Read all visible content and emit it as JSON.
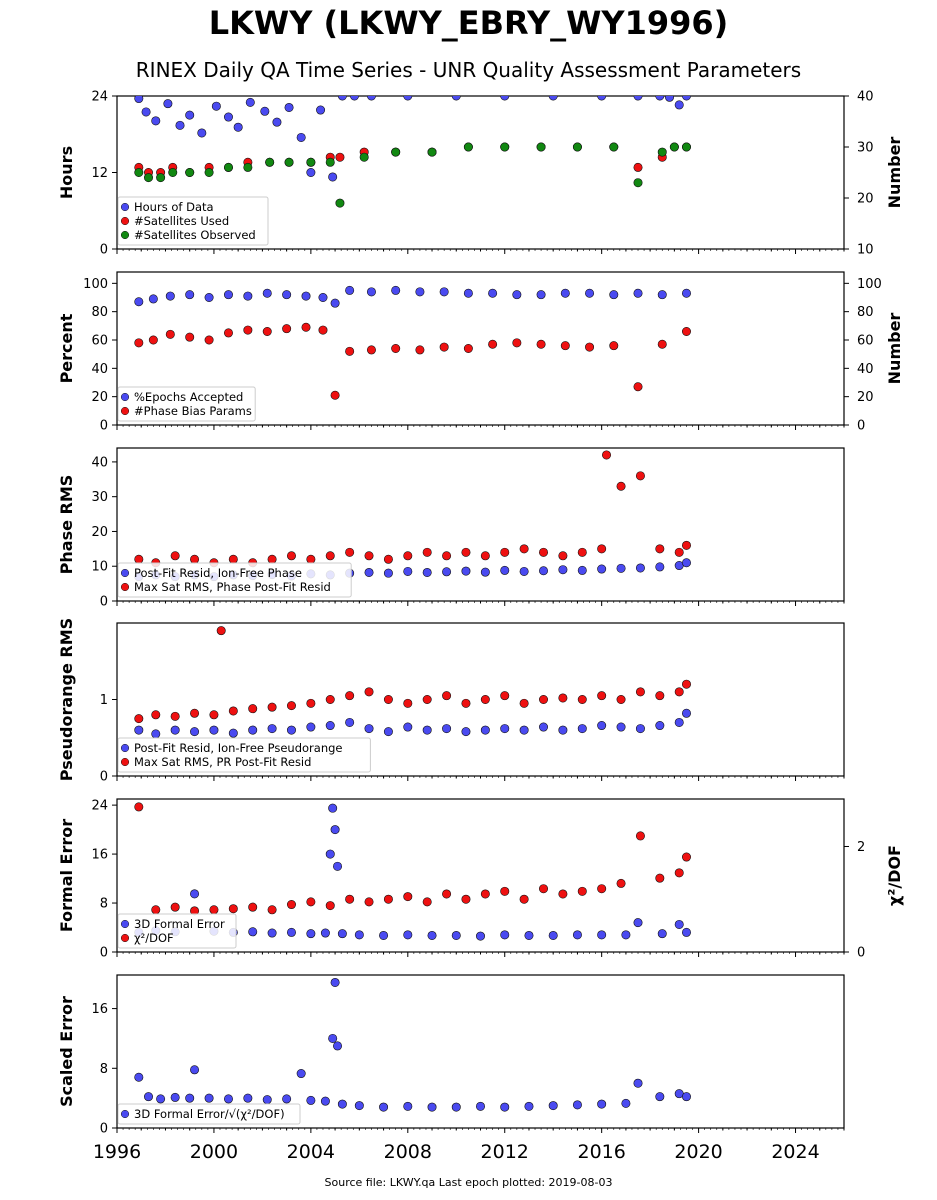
{
  "title": "LKWY (LKWY_EBRY_WY1996)",
  "subtitle": "RINEX Daily QA Time Series - UNR Quality Assessment Parameters",
  "footer": "Source file: LKWY.qa Last epoch plotted: 2019-08-03",
  "colors": {
    "blue": "#4a4af0",
    "red": "#ee1111",
    "green": "#118811",
    "edge": "#111111"
  },
  "chart_data": [
    {
      "type": "scatter",
      "ylabel": "Hours",
      "ylabel_right": "Number",
      "xlim": [
        1996,
        2026
      ],
      "ylim": [
        0,
        24
      ],
      "ylim_right": [
        10,
        40
      ],
      "yticks": [
        0,
        12,
        24
      ],
      "yticks_right": [
        10,
        20,
        30,
        40
      ],
      "legend": "lower-left",
      "series": [
        {
          "name": "Hours of Data",
          "color": "blue",
          "axis": "left",
          "x": [
            1996.9,
            1997.2,
            1997.6,
            1998.1,
            1998.6,
            1999.0,
            1999.5,
            2000.1,
            2000.6,
            2001.0,
            2001.5,
            2002.1,
            2002.6,
            2003.1,
            2003.6,
            2004.0,
            2004.4,
            2004.9,
            2005.3,
            2005.8,
            2006.5,
            2008.0,
            2010.0,
            2012.0,
            2014.0,
            2016.0,
            2017.5,
            2018.4,
            2018.8,
            2019.2,
            2019.5
          ],
          "y": [
            23.6,
            21.5,
            20.1,
            22.8,
            19.4,
            21.0,
            18.2,
            22.4,
            20.7,
            19.1,
            23.0,
            21.6,
            19.9,
            22.2,
            17.5,
            12.0,
            21.8,
            11.3,
            24,
            24,
            24,
            24,
            24,
            24,
            24,
            24,
            24,
            24,
            23.8,
            22.6,
            24
          ]
        },
        {
          "name": "#Satellites Used",
          "color": "red",
          "axis": "right",
          "x": [
            1996.9,
            1997.3,
            1997.8,
            1998.3,
            1999.0,
            1999.8,
            2000.6,
            2001.4,
            2002.3,
            2003.1,
            2004.0,
            2004.8,
            2005.2,
            2006.2,
            2007.5,
            2009.0,
            2010.5,
            2012.0,
            2013.5,
            2015.0,
            2016.5,
            2017.5,
            2018.5,
            2019.0,
            2019.5
          ],
          "y": [
            26,
            25,
            25,
            26,
            25,
            26,
            26,
            27,
            27,
            27,
            27,
            28,
            28,
            29,
            29,
            29,
            30,
            30,
            30,
            30,
            30,
            26,
            28,
            30,
            30
          ]
        },
        {
          "name": "#Satellites Observed",
          "color": "green",
          "axis": "right",
          "x": [
            1996.9,
            1997.3,
            1997.8,
            1998.3,
            1999.0,
            1999.8,
            2000.6,
            2001.4,
            2002.3,
            2003.1,
            2004.0,
            2004.8,
            2005.2,
            2006.2,
            2007.5,
            2009.0,
            2010.5,
            2012.0,
            2013.5,
            2015.0,
            2016.5,
            2017.5,
            2018.5,
            2019.0,
            2019.5
          ],
          "y": [
            25,
            24,
            24,
            25,
            25,
            25,
            26,
            26,
            27,
            27,
            27,
            27,
            19,
            28,
            29,
            29,
            30,
            30,
            30,
            30,
            30,
            23,
            29,
            30,
            30
          ]
        }
      ]
    },
    {
      "type": "scatter",
      "ylabel": "Percent",
      "ylabel_right": "Number",
      "xlim": [
        1996,
        2026
      ],
      "ylim": [
        0,
        108
      ],
      "ylim_right": [
        0,
        108
      ],
      "yticks": [
        0,
        20,
        40,
        60,
        80,
        100
      ],
      "yticks_right": [
        0,
        20,
        40,
        60,
        80,
        100
      ],
      "legend": "lower-left",
      "series": [
        {
          "name": "%Epochs Accepted",
          "color": "blue",
          "axis": "left",
          "x": [
            1996.9,
            1997.5,
            1998.2,
            1999.0,
            1999.8,
            2000.6,
            2001.4,
            2002.2,
            2003.0,
            2003.8,
            2004.5,
            2005.0,
            2005.6,
            2006.5,
            2007.5,
            2008.5,
            2009.5,
            2010.5,
            2011.5,
            2012.5,
            2013.5,
            2014.5,
            2015.5,
            2016.5,
            2017.5,
            2018.5,
            2019.5
          ],
          "y": [
            87,
            89,
            91,
            92,
            90,
            92,
            91,
            93,
            92,
            91,
            90,
            86,
            95,
            94,
            95,
            94,
            94,
            93,
            93,
            92,
            92,
            93,
            93,
            92,
            93,
            92,
            93
          ]
        },
        {
          "name": "#Phase Bias Params",
          "color": "red",
          "axis": "right",
          "x": [
            1996.9,
            1997.5,
            1998.2,
            1999.0,
            1999.8,
            2000.6,
            2001.4,
            2002.2,
            2003.0,
            2003.8,
            2004.5,
            2005.0,
            2005.6,
            2006.5,
            2007.5,
            2008.5,
            2009.5,
            2010.5,
            2011.5,
            2012.5,
            2013.5,
            2014.5,
            2015.5,
            2016.5,
            2017.5,
            2018.5,
            2019.5
          ],
          "y": [
            58,
            60,
            64,
            62,
            60,
            65,
            67,
            66,
            68,
            69,
            67,
            21,
            52,
            53,
            54,
            53,
            55,
            54,
            57,
            58,
            57,
            56,
            55,
            56,
            27,
            57,
            66
          ]
        }
      ]
    },
    {
      "type": "scatter",
      "ylabel": "Phase RMS",
      "xlim": [
        1996,
        2026
      ],
      "ylim": [
        0,
        44
      ],
      "yticks": [
        0,
        10,
        20,
        30,
        40
      ],
      "legend": "lower-left",
      "series": [
        {
          "name": "Post-Fit Resid, Ion-Free Phase",
          "color": "blue",
          "x": [
            1996.9,
            1997.6,
            1998.4,
            1999.2,
            2000.0,
            2000.8,
            2001.6,
            2002.4,
            2003.2,
            2004.0,
            2004.8,
            2005.6,
            2006.4,
            2007.2,
            2008.0,
            2008.8,
            2009.6,
            2010.4,
            2011.2,
            2012.0,
            2012.8,
            2013.6,
            2014.4,
            2015.2,
            2016.0,
            2016.8,
            2017.6,
            2018.4,
            2019.2,
            2019.5
          ],
          "y": [
            7,
            7.5,
            7,
            7.5,
            7,
            7.5,
            7.3,
            7.6,
            7.2,
            7.8,
            7.5,
            8,
            8.2,
            8,
            8.5,
            8.2,
            8.4,
            8.6,
            8.3,
            8.8,
            8.5,
            8.7,
            9,
            8.8,
            9.2,
            9.4,
            9.5,
            9.8,
            10.2,
            11
          ]
        },
        {
          "name": "Max Sat RMS, Phase Post-Fit Resid",
          "color": "red",
          "x": [
            1996.9,
            1997.6,
            1998.4,
            1999.2,
            2000.0,
            2000.8,
            2001.6,
            2002.4,
            2003.2,
            2004.0,
            2004.8,
            2005.6,
            2006.4,
            2007.2,
            2008.0,
            2008.8,
            2009.6,
            2010.4,
            2011.2,
            2012.0,
            2012.8,
            2013.6,
            2014.4,
            2015.2,
            2016.0,
            2016.2,
            2016.8,
            2017.6,
            2018.4,
            2019.2,
            2019.5
          ],
          "y": [
            12,
            11,
            13,
            12,
            11,
            12,
            11,
            12,
            13,
            12,
            13,
            14,
            13,
            12,
            13,
            14,
            13,
            14,
            13,
            14,
            15,
            14,
            13,
            14,
            15,
            42,
            33,
            36,
            15,
            14,
            16
          ]
        }
      ]
    },
    {
      "type": "scatter",
      "ylabel": "Pseudorange RMS",
      "xlim": [
        1996,
        2026
      ],
      "ylim": [
        0,
        2.0
      ],
      "yticks": [
        0,
        1
      ],
      "legend": "lower-left",
      "series": [
        {
          "name": "Post-Fit Resid, Ion-Free Pseudorange",
          "color": "blue",
          "x": [
            1996.9,
            1997.6,
            1998.4,
            1999.2,
            2000.0,
            2000.8,
            2001.6,
            2002.4,
            2003.2,
            2004.0,
            2004.8,
            2005.6,
            2006.4,
            2007.2,
            2008.0,
            2008.8,
            2009.6,
            2010.4,
            2011.2,
            2012.0,
            2012.8,
            2013.6,
            2014.4,
            2015.2,
            2016.0,
            2016.8,
            2017.6,
            2018.4,
            2019.2,
            2019.5
          ],
          "y": [
            0.6,
            0.55,
            0.6,
            0.58,
            0.6,
            0.56,
            0.6,
            0.62,
            0.6,
            0.64,
            0.66,
            0.7,
            0.62,
            0.58,
            0.64,
            0.6,
            0.62,
            0.58,
            0.6,
            0.62,
            0.6,
            0.64,
            0.6,
            0.62,
            0.66,
            0.64,
            0.62,
            0.66,
            0.7,
            0.82
          ]
        },
        {
          "name": "Max Sat RMS, PR Post-Fit Resid",
          "color": "red",
          "x": [
            1996.9,
            1997.6,
            1998.4,
            1999.2,
            2000.0,
            2000.3,
            2000.8,
            2001.6,
            2002.4,
            2003.2,
            2004.0,
            2004.8,
            2005.6,
            2006.4,
            2007.2,
            2008.0,
            2008.8,
            2009.6,
            2010.4,
            2011.2,
            2012.0,
            2012.8,
            2013.6,
            2014.4,
            2015.2,
            2016.0,
            2016.8,
            2017.6,
            2018.4,
            2019.2,
            2019.5
          ],
          "y": [
            0.75,
            0.8,
            0.78,
            0.82,
            0.8,
            1.9,
            0.85,
            0.88,
            0.9,
            0.92,
            0.95,
            1.0,
            1.05,
            1.1,
            1.0,
            0.95,
            1.0,
            1.05,
            0.95,
            1.0,
            1.05,
            0.95,
            1.0,
            1.02,
            1.0,
            1.05,
            1.0,
            1.1,
            1.05,
            1.1,
            1.2
          ]
        }
      ]
    },
    {
      "type": "scatter",
      "ylabel": "Formal Error",
      "ylabel_right": "χ²/DOF",
      "xlim": [
        1996,
        2026
      ],
      "ylim": [
        0,
        25
      ],
      "ylim_right": [
        0,
        2.9
      ],
      "yticks": [
        0,
        8,
        16,
        24
      ],
      "yticks_right": [
        0,
        2
      ],
      "legend": "lower-left",
      "series": [
        {
          "name": "3D Formal Error",
          "color": "blue",
          "axis": "left",
          "x": [
            1996.9,
            1997.6,
            1998.4,
            1999.2,
            2000.0,
            2000.8,
            2001.6,
            2002.4,
            2003.2,
            2004.0,
            2004.6,
            2004.8,
            2004.9,
            2005.0,
            2005.1,
            2005.3,
            2006.0,
            2007.0,
            2008.0,
            2009.0,
            2010.0,
            2011.0,
            2012.0,
            2013.0,
            2014.0,
            2015.0,
            2016.0,
            2017.0,
            2017.5,
            2018.5,
            2019.2,
            2019.5
          ],
          "y": [
            3.2,
            3.5,
            3.3,
            9.5,
            3.4,
            3.2,
            3.3,
            3.1,
            3.2,
            3.0,
            3.1,
            16,
            23.5,
            20,
            14,
            3.0,
            2.8,
            2.7,
            2.8,
            2.7,
            2.7,
            2.6,
            2.8,
            2.7,
            2.7,
            2.8,
            2.8,
            2.8,
            4.8,
            3.0,
            4.5,
            3.2
          ]
        },
        {
          "name": "χ²/DOF",
          "color": "red",
          "axis": "right",
          "x": [
            1996.9,
            1997.6,
            1998.4,
            1999.2,
            2000.0,
            2000.8,
            2001.6,
            2002.4,
            2003.2,
            2004.0,
            2004.8,
            2005.6,
            2006.4,
            2007.2,
            2008.0,
            2008.8,
            2009.6,
            2010.4,
            2011.2,
            2012.0,
            2012.8,
            2013.6,
            2014.4,
            2015.2,
            2016.0,
            2016.8,
            2017.6,
            2018.4,
            2019.2,
            2019.5
          ],
          "y": [
            2.75,
            0.8,
            0.85,
            0.78,
            0.8,
            0.82,
            0.85,
            0.8,
            0.9,
            0.95,
            0.88,
            1.0,
            0.95,
            1.0,
            1.05,
            0.95,
            1.1,
            1.0,
            1.1,
            1.15,
            1.0,
            1.2,
            1.1,
            1.15,
            1.2,
            1.3,
            2.2,
            1.4,
            1.5,
            1.8
          ]
        }
      ]
    },
    {
      "type": "scatter",
      "ylabel": "Scaled Error",
      "xlabel_ticks": [
        "1996",
        "2000",
        "2004",
        "2008",
        "2012",
        "2016",
        "2020",
        "2024"
      ],
      "xlim": [
        1996,
        2026
      ],
      "ylim": [
        0,
        20.5
      ],
      "yticks": [
        0,
        8,
        16
      ],
      "legend": "lower-left",
      "series": [
        {
          "name": "3D Formal Error/√χ²/DOF",
          "color": "blue",
          "legend_html": "3D Formal Error/√(χ²/DOF)",
          "x": [
            1996.9,
            1997.3,
            1997.8,
            1998.4,
            1999.0,
            1999.2,
            1999.8,
            2000.6,
            2001.4,
            2002.2,
            2003.0,
            2003.6,
            2004.0,
            2004.6,
            2004.9,
            2005.0,
            2005.1,
            2005.3,
            2006.0,
            2007.0,
            2008.0,
            2009.0,
            2010.0,
            2011.0,
            2012.0,
            2013.0,
            2014.0,
            2015.0,
            2016.0,
            2017.0,
            2017.5,
            2018.4,
            2019.2,
            2019.5
          ],
          "y": [
            6.8,
            4.2,
            3.9,
            4.1,
            4.0,
            7.8,
            4.0,
            3.9,
            4.0,
            3.8,
            3.9,
            7.3,
            3.7,
            3.6,
            12.0,
            19.5,
            11.0,
            3.2,
            3.0,
            2.8,
            2.9,
            2.8,
            2.8,
            2.9,
            2.8,
            2.9,
            3.0,
            3.1,
            3.2,
            3.3,
            6.0,
            4.2,
            4.6,
            4.2
          ]
        }
      ]
    }
  ]
}
